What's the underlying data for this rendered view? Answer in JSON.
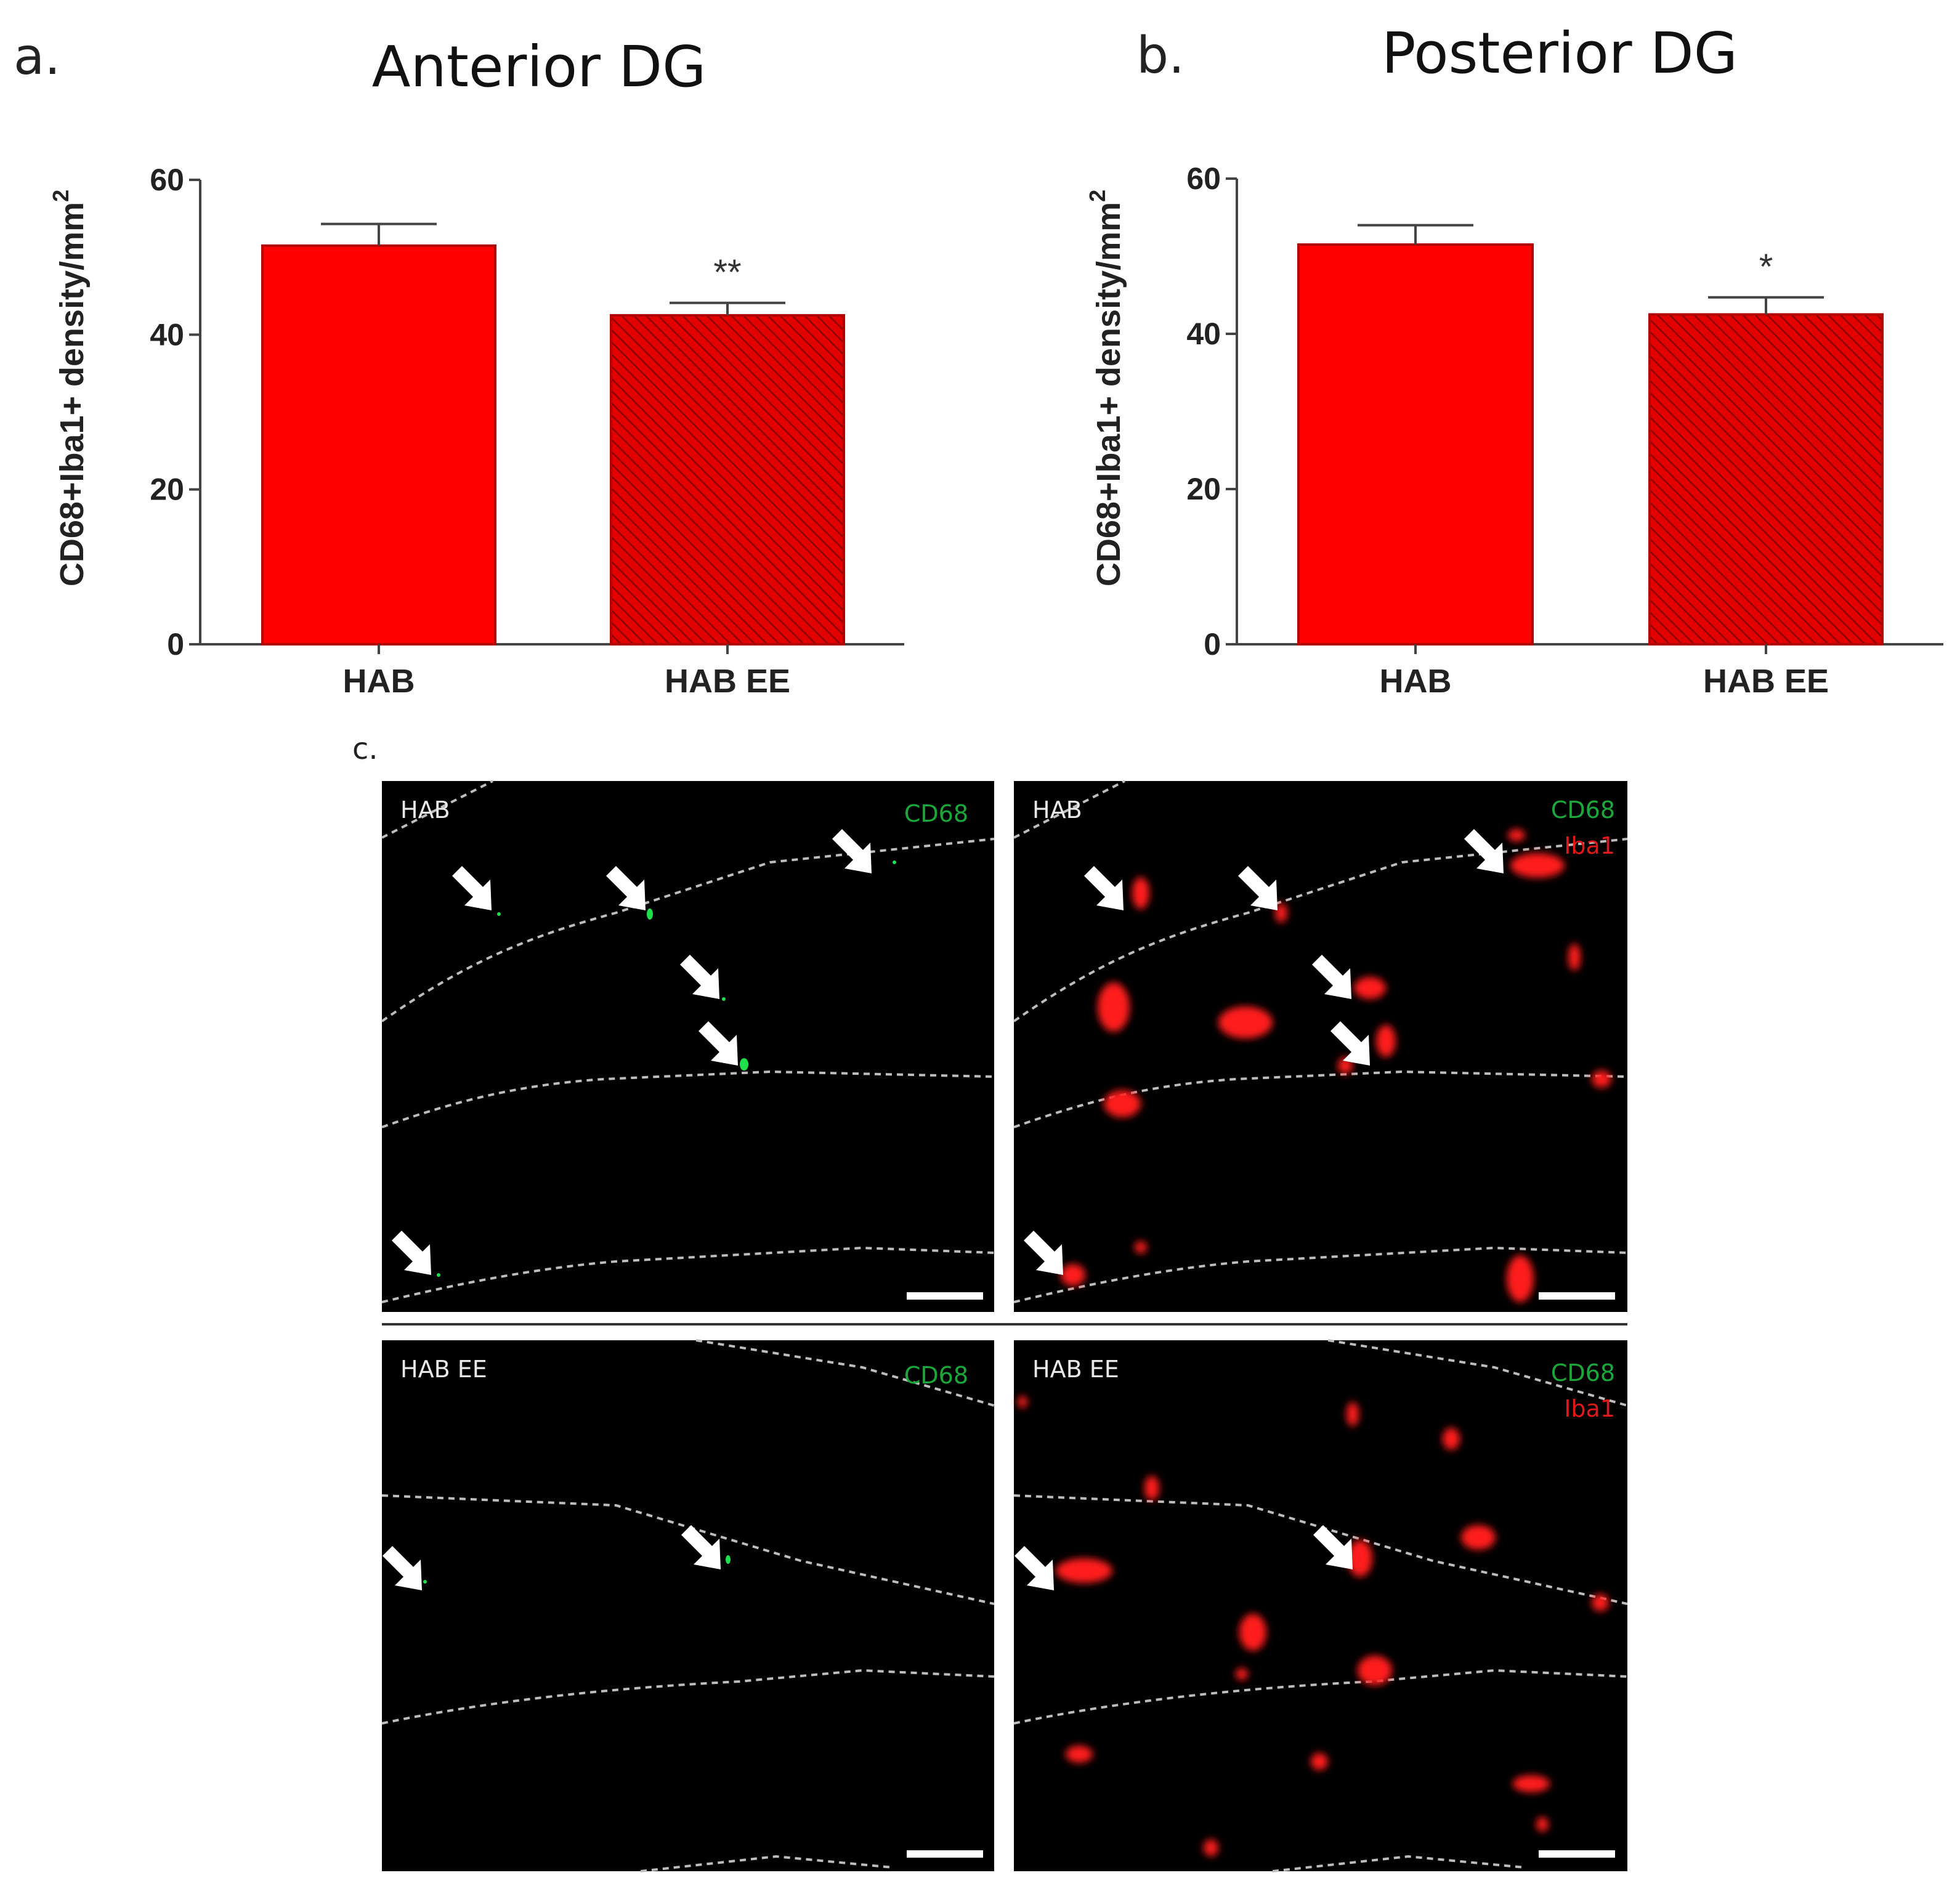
{
  "panels": {
    "a": "a.",
    "b": "b.",
    "c": "c."
  },
  "chart_data": [
    {
      "type": "bar",
      "title": "Anterior DG",
      "ylabel": "CD68+Iba1+ density/mm",
      "ylabel_sup": "2",
      "xlabel": "",
      "categories": [
        "HAB",
        "HAB EE"
      ],
      "values": [
        51.5,
        42.5
      ],
      "errors": [
        2.8,
        1.6
      ],
      "significance": [
        "",
        "**"
      ],
      "ylim": [
        0,
        60
      ],
      "yticks": [
        0,
        20,
        40,
        60
      ],
      "patterns": [
        "solid",
        "hatched"
      ],
      "colors": [
        "#ff0000",
        "#dd0000"
      ]
    },
    {
      "type": "bar",
      "title": "Posterior DG",
      "ylabel": "CD68+Iba1+ density/mm",
      "ylabel_sup": "2",
      "xlabel": "",
      "categories": [
        "HAB",
        "HAB EE"
      ],
      "values": [
        51.5,
        42.5
      ],
      "errors": [
        2.5,
        2.2
      ],
      "significance": [
        "",
        "*"
      ],
      "ylim": [
        0,
        60
      ],
      "yticks": [
        0,
        20,
        40,
        60
      ],
      "patterns": [
        "solid",
        "hatched"
      ],
      "colors": [
        "#ff0000",
        "#dd0000"
      ]
    }
  ],
  "micrographs": [
    {
      "group": "HAB",
      "channels": [
        {
          "name": "CD68",
          "color": "#1aa83a"
        }
      ]
    },
    {
      "group": "HAB",
      "channels": [
        {
          "name": "CD68",
          "color": "#1aa83a"
        },
        {
          "name": "Iba1",
          "color": "#e01818"
        }
      ]
    },
    {
      "group": "HAB EE",
      "channels": [
        {
          "name": "CD68",
          "color": "#1aa83a"
        }
      ]
    },
    {
      "group": "HAB EE",
      "channels": [
        {
          "name": "CD68",
          "color": "#1aa83a"
        },
        {
          "name": "Iba1",
          "color": "#e01818"
        }
      ]
    }
  ]
}
